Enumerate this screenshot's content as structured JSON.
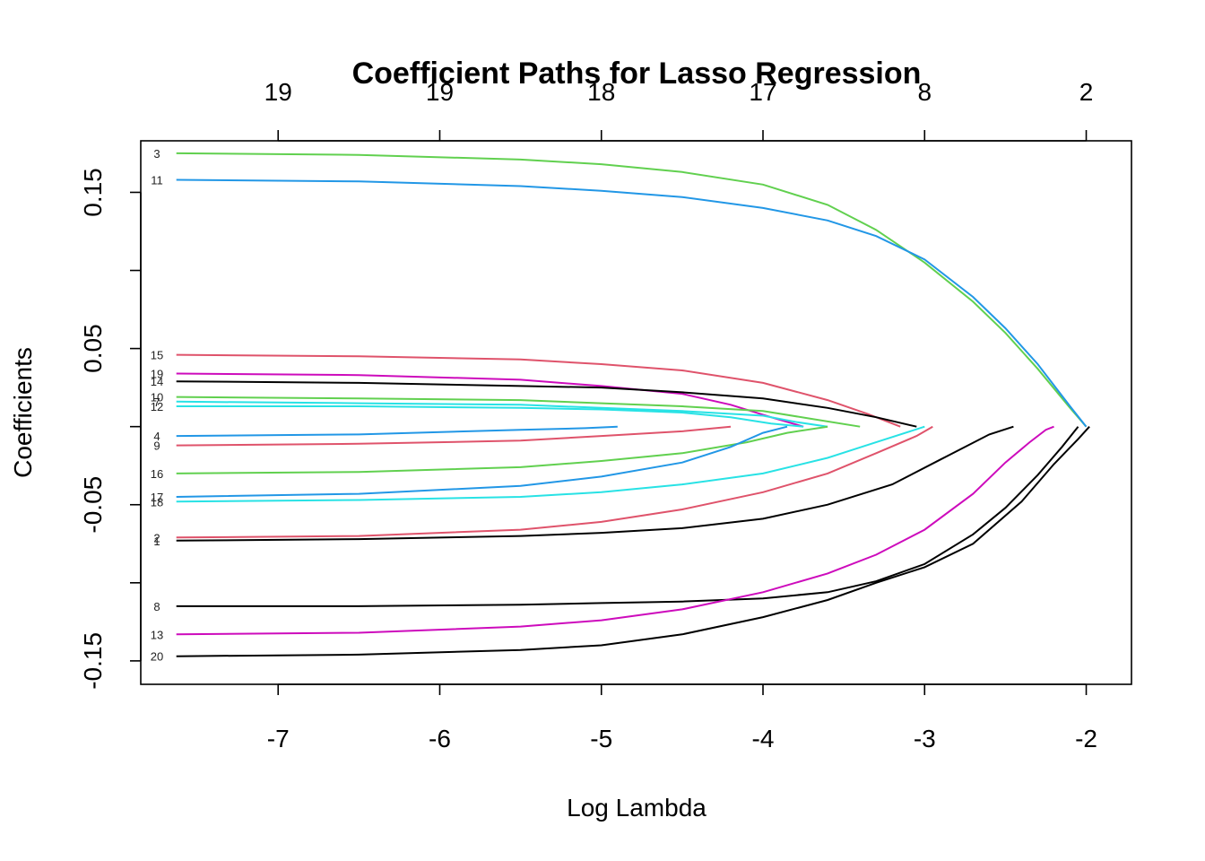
{
  "chart_data": {
    "type": "line",
    "title": "Coefficient Paths for Lasso Regression",
    "xlabel": "Log Lambda",
    "ylabel": "Coefficients",
    "xlim": [
      -7.85,
      -1.72
    ],
    "ylim": [
      -0.165,
      0.183
    ],
    "x_ticks": [
      -7,
      -6,
      -5,
      -4,
      -3,
      -2
    ],
    "x_tick_labels": [
      "-7",
      "-6",
      "-5",
      "-4",
      "-3",
      "-2"
    ],
    "y_ticks": [
      -0.15,
      -0.1,
      -0.05,
      0.0,
      0.05,
      0.1,
      0.15
    ],
    "y_tick_labels": [
      "-0.15",
      "",
      "-0.05",
      "",
      "0.05",
      "",
      "0.15"
    ],
    "top_ticks": [
      -7,
      -6,
      -5,
      -4,
      -3,
      -2
    ],
    "top_tick_labels": [
      "19",
      "19",
      "18",
      "17",
      "8",
      "2"
    ],
    "grid": false,
    "legend": "none",
    "series": [
      {
        "label": "3",
        "color": "#61D04F",
        "x": [
          -7.63,
          -6.5,
          -5.5,
          -5.0,
          -4.5,
          -4.0,
          -3.6,
          -3.3,
          -3.0,
          -2.7,
          -2.5,
          -2.3,
          -2.1,
          -2.0
        ],
        "y": [
          0.175,
          0.174,
          0.171,
          0.168,
          0.163,
          0.155,
          0.142,
          0.126,
          0.105,
          0.08,
          0.06,
          0.037,
          0.012,
          0.0
        ]
      },
      {
        "label": "11",
        "color": "#2297E6",
        "x": [
          -7.63,
          -6.5,
          -5.5,
          -5.0,
          -4.5,
          -4.0,
          -3.6,
          -3.3,
          -3.0,
          -2.7,
          -2.5,
          -2.3,
          -2.1,
          -2.0
        ],
        "y": [
          0.158,
          0.157,
          0.154,
          0.151,
          0.147,
          0.14,
          0.132,
          0.122,
          0.107,
          0.083,
          0.063,
          0.04,
          0.013,
          0.0
        ]
      },
      {
        "label": "15",
        "color": "#DF536B",
        "x": [
          -7.63,
          -6.5,
          -5.5,
          -5.0,
          -4.5,
          -4.0,
          -3.6,
          -3.35,
          -3.15
        ],
        "y": [
          0.046,
          0.045,
          0.043,
          0.04,
          0.036,
          0.028,
          0.017,
          0.008,
          0.0
        ]
      },
      {
        "label": "19",
        "color": "#CD0BBC",
        "x": [
          -7.63,
          -6.5,
          -5.5,
          -5.0,
          -4.5,
          -4.2,
          -3.95,
          -3.75
        ],
        "y": [
          0.034,
          0.033,
          0.03,
          0.026,
          0.021,
          0.014,
          0.006,
          0.0
        ]
      },
      {
        "label": "14",
        "color": "#000000",
        "x": [
          -7.63,
          -6.5,
          -5.5,
          -5.0,
          -4.5,
          -4.0,
          -3.6,
          -3.3,
          -3.05
        ],
        "y": [
          0.029,
          0.028,
          0.026,
          0.025,
          0.022,
          0.018,
          0.012,
          0.006,
          0.0
        ]
      },
      {
        "label": "10",
        "color": "#61D04F",
        "x": [
          -7.63,
          -6.5,
          -5.5,
          -5.0,
          -4.5,
          -4.0,
          -3.7,
          -3.4
        ],
        "y": [
          0.019,
          0.018,
          0.017,
          0.015,
          0.013,
          0.01,
          0.005,
          0.0
        ]
      },
      {
        "label": "7",
        "color": "#28E2E5",
        "x": [
          -7.63,
          -6.5,
          -5.5,
          -5.0,
          -4.5,
          -4.0,
          -3.8,
          -3.6
        ],
        "y": [
          0.016,
          0.015,
          0.014,
          0.012,
          0.01,
          0.007,
          0.003,
          0.0
        ]
      },
      {
        "label": "12",
        "color": "#28E2E5",
        "x": [
          -7.63,
          -6.5,
          -5.5,
          -5.0,
          -4.5,
          -4.2,
          -3.95,
          -3.75
        ],
        "y": [
          0.013,
          0.013,
          0.012,
          0.011,
          0.009,
          0.006,
          0.002,
          0.0
        ]
      },
      {
        "label": "4",
        "color": "#2297E6",
        "x": [
          -7.63,
          -6.5,
          -5.5,
          -5.1,
          -4.9
        ],
        "y": [
          -0.006,
          -0.005,
          -0.002,
          -0.001,
          0.0
        ]
      },
      {
        "label": "9",
        "color": "#DF536B",
        "x": [
          -7.63,
          -6.5,
          -5.5,
          -5.0,
          -4.5,
          -4.2
        ],
        "y": [
          -0.012,
          -0.011,
          -0.009,
          -0.006,
          -0.003,
          0.0
        ]
      },
      {
        "label": "16",
        "color": "#61D04F",
        "x": [
          -7.63,
          -6.5,
          -5.5,
          -5.0,
          -4.5,
          -4.1,
          -3.85,
          -3.6
        ],
        "y": [
          -0.03,
          -0.029,
          -0.026,
          -0.022,
          -0.017,
          -0.01,
          -0.004,
          0.0
        ]
      },
      {
        "label": "17",
        "color": "#2297E6",
        "x": [
          -7.63,
          -6.5,
          -5.5,
          -5.0,
          -4.5,
          -4.2,
          -4.0,
          -3.85
        ],
        "y": [
          -0.045,
          -0.043,
          -0.038,
          -0.032,
          -0.023,
          -0.013,
          -0.004,
          0.0
        ]
      },
      {
        "label": "18",
        "color": "#28E2E5",
        "x": [
          -7.63,
          -6.5,
          -5.5,
          -5.0,
          -4.5,
          -4.0,
          -3.6,
          -3.3,
          -3.0
        ],
        "y": [
          -0.048,
          -0.047,
          -0.045,
          -0.042,
          -0.037,
          -0.03,
          -0.02,
          -0.01,
          0.0
        ]
      },
      {
        "label": "2",
        "color": "#DF536B",
        "x": [
          -7.63,
          -6.5,
          -5.5,
          -5.0,
          -4.5,
          -4.0,
          -3.6,
          -3.3,
          -3.05,
          -2.95
        ],
        "y": [
          -0.071,
          -0.07,
          -0.066,
          -0.061,
          -0.053,
          -0.042,
          -0.03,
          -0.017,
          -0.006,
          0.0
        ]
      },
      {
        "label": "1",
        "color": "#000000",
        "x": [
          -7.63,
          -6.5,
          -5.5,
          -5.0,
          -4.5,
          -4.0,
          -3.6,
          -3.2,
          -2.9,
          -2.6,
          -2.45
        ],
        "y": [
          -0.073,
          -0.072,
          -0.07,
          -0.068,
          -0.065,
          -0.059,
          -0.05,
          -0.037,
          -0.021,
          -0.005,
          0.0
        ]
      },
      {
        "label": "8",
        "color": "#000000",
        "x": [
          -7.63,
          -6.5,
          -5.5,
          -5.0,
          -4.5,
          -4.0,
          -3.6,
          -3.3,
          -3.0,
          -2.7,
          -2.5,
          -2.3,
          -2.15,
          -2.05
        ],
        "y": [
          -0.115,
          -0.115,
          -0.114,
          -0.113,
          -0.112,
          -0.11,
          -0.106,
          -0.099,
          -0.088,
          -0.069,
          -0.052,
          -0.031,
          -0.013,
          0.0
        ]
      },
      {
        "label": "13",
        "color": "#CD0BBC",
        "x": [
          -7.63,
          -6.5,
          -5.5,
          -5.0,
          -4.5,
          -4.0,
          -3.6,
          -3.3,
          -3.0,
          -2.7,
          -2.5,
          -2.35,
          -2.25,
          -2.2
        ],
        "y": [
          -0.133,
          -0.132,
          -0.128,
          -0.124,
          -0.117,
          -0.106,
          -0.094,
          -0.082,
          -0.066,
          -0.043,
          -0.023,
          -0.01,
          -0.002,
          0.0
        ]
      },
      {
        "label": "20",
        "color": "#000000",
        "x": [
          -7.63,
          -6.5,
          -5.5,
          -5.0,
          -4.5,
          -4.0,
          -3.6,
          -3.3,
          -3.0,
          -2.7,
          -2.4,
          -2.2,
          -2.05,
          -1.98
        ],
        "y": [
          -0.147,
          -0.146,
          -0.143,
          -0.14,
          -0.133,
          -0.122,
          -0.111,
          -0.1,
          -0.09,
          -0.075,
          -0.048,
          -0.024,
          -0.008,
          0.0
        ]
      }
    ]
  }
}
